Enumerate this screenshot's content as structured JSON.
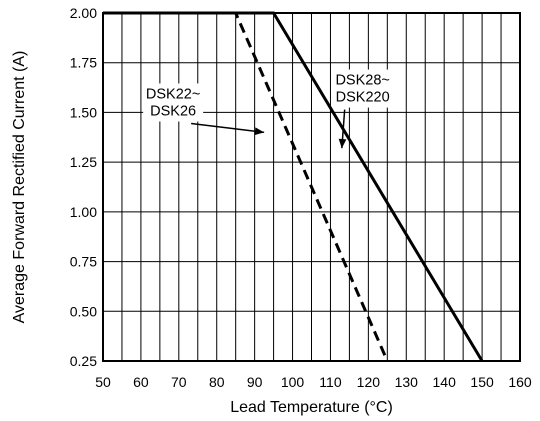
{
  "chart_data": {
    "type": "line",
    "title": "",
    "xlabel": "Lead Temperature (°C)",
    "ylabel": "Average Forward Rectified Current (A)",
    "xlim": [
      50,
      160
    ],
    "ylim": [
      0.25,
      2.0
    ],
    "x_ticks": [
      50,
      60,
      70,
      80,
      90,
      100,
      110,
      120,
      130,
      140,
      150,
      160
    ],
    "x_tick_labels": [
      "50",
      "60",
      "70",
      "80",
      "90",
      "100",
      "110",
      "120",
      "130",
      "140",
      "150",
      "160"
    ],
    "y_ticks": [
      0.25,
      0.5,
      0.75,
      1.0,
      1.25,
      1.5,
      1.75,
      2.0
    ],
    "y_tick_labels": [
      "0.25",
      "0.50",
      "0.75",
      "1.00",
      "1.25",
      "1.50",
      "1.75",
      "2.00"
    ],
    "x_minor_step": 5,
    "grid": true,
    "legend": "none",
    "series": [
      {
        "name": "DSK22~ DSK26",
        "style": "dashed",
        "color": "#000000",
        "points": [
          [
            50,
            2.0
          ],
          [
            85,
            2.0
          ],
          [
            125,
            0.25
          ]
        ]
      },
      {
        "name": "DSK28~ DSK220",
        "style": "solid",
        "color": "#000000",
        "points": [
          [
            50,
            2.0
          ],
          [
            95,
            2.0
          ],
          [
            150,
            0.25
          ]
        ]
      }
    ],
    "annotations": [
      {
        "lines": [
          "DSK22~",
          "DSK26"
        ],
        "series": 0,
        "text_at": [
          68.5,
          1.55
        ],
        "arrow_to": [
          92.5,
          1.4
        ]
      },
      {
        "lines": [
          "DSK28~",
          "DSK220"
        ],
        "series": 1,
        "text_at": [
          118.5,
          1.62
        ],
        "arrow_to": [
          113.0,
          1.32
        ]
      }
    ]
  }
}
